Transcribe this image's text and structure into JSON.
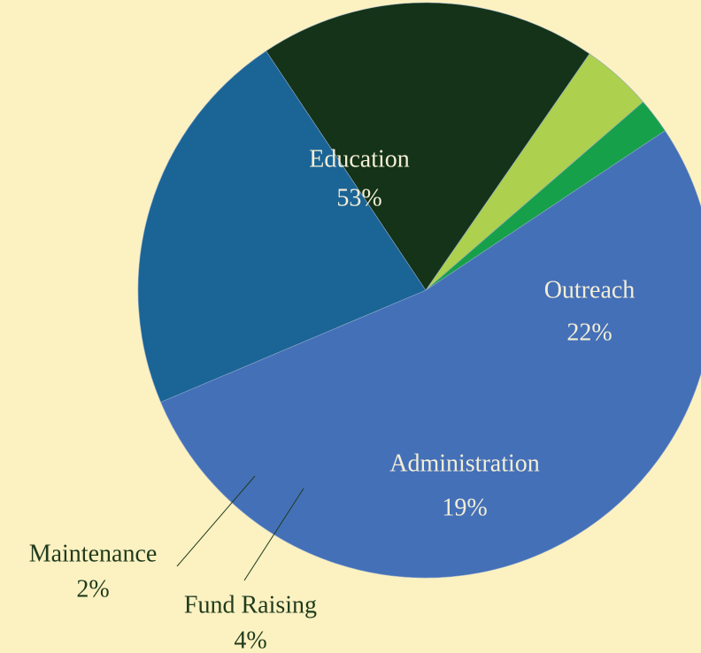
{
  "chart_data": {
    "type": "pie",
    "categories": [
      "Education",
      "Outreach",
      "Administration",
      "Fund Raising",
      "Maintenance"
    ],
    "values": [
      53,
      22,
      19,
      4,
      2
    ],
    "value_labels": [
      "53%",
      "22%",
      "19%",
      "4%",
      "2%"
    ],
    "colors": [
      "#4470b8",
      "#1b6496",
      "#143318",
      "#add04e",
      "#17a04a"
    ]
  }
}
